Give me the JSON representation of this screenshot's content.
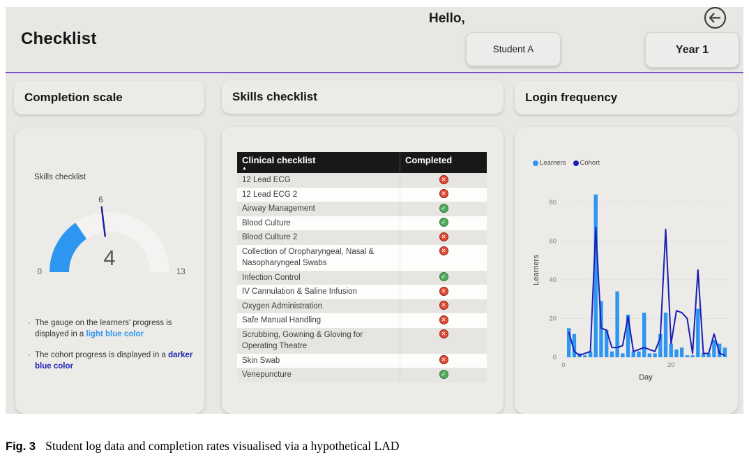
{
  "header": {
    "title": "Checklist",
    "greeting": "Hello,",
    "student_button": "Student A",
    "year_button": "Year 1",
    "back_icon": "arrow-left-circle"
  },
  "colors": {
    "learners_light_blue": "#2E96F0",
    "cohort_dark_blue": "#1B1EB4",
    "accent_purple": "#7a52c7",
    "completed_green": "#54ab5e",
    "not_completed_red": "#df4a35"
  },
  "panels": {
    "completion": {
      "title": "Completion scale",
      "gauge": {
        "label": "Skills checklist",
        "value": 4,
        "min": 0,
        "max": 13,
        "target": 6,
        "value_color": "#2E96F0",
        "track_color": "#f4f3f1",
        "target_color": "#1a1d9c"
      },
      "notes": [
        {
          "text": "The gauge on the learners' progress is displayed in a ",
          "highlight": "light blue color",
          "color": "#2E96F0"
        },
        {
          "text": "The cohort progress is displayed in a ",
          "highlight": "darker blue color",
          "color": "#1B1EB4"
        }
      ]
    },
    "skills": {
      "title": "Skills checklist",
      "table": {
        "columns": [
          "Clinical checklist",
          "Completed"
        ],
        "sort_indicator": "▲",
        "rows": [
          {
            "skill": "12 Lead ECG",
            "completed": false
          },
          {
            "skill": "12 Lead ECG 2",
            "completed": false
          },
          {
            "skill": "Airway Management",
            "completed": true
          },
          {
            "skill": "Blood Culture",
            "completed": true
          },
          {
            "skill": "Blood Culture 2",
            "completed": false
          },
          {
            "skill": "Collection of Oropharyngeal, Nasal & Nasopharyngeal Swabs",
            "completed": false
          },
          {
            "skill": "Infection Control",
            "completed": true
          },
          {
            "skill": "IV Cannulation & Saline Infusion",
            "completed": false
          },
          {
            "skill": "Oxygen Administration",
            "completed": false
          },
          {
            "skill": "Safe Manual Handling",
            "completed": false
          },
          {
            "skill": "Scrubbing, Gowning & Gloving for Operating Theatre",
            "completed": false
          },
          {
            "skill": "Skin Swab",
            "completed": false
          },
          {
            "skill": "Venepuncture",
            "completed": true
          }
        ]
      }
    },
    "login": {
      "title": "Login frequency"
    }
  },
  "chart_data": {
    "type": "bar+line",
    "title": "Login frequency",
    "x": [
      1,
      2,
      3,
      4,
      5,
      6,
      7,
      8,
      9,
      10,
      11,
      12,
      13,
      14,
      15,
      16,
      17,
      18,
      19,
      20,
      21,
      22,
      23,
      24,
      25,
      26,
      27,
      28,
      29,
      30
    ],
    "series": [
      {
        "name": "Learners",
        "type": "bar",
        "color": "#2E96F0",
        "values": [
          15,
          12,
          2,
          1,
          3,
          84,
          29,
          14,
          3,
          34,
          2,
          22,
          3,
          3,
          23,
          2,
          2,
          12,
          23,
          7,
          4,
          5,
          1,
          1,
          25,
          2,
          2,
          9,
          7,
          5
        ]
      },
      {
        "name": "Cohort",
        "type": "line",
        "color": "#1B1EB4",
        "values": [
          13,
          3,
          1,
          2,
          3,
          67,
          15,
          14,
          5,
          5,
          6,
          21,
          3,
          4,
          5,
          4,
          3,
          10,
          66,
          7,
          24,
          23,
          20,
          2,
          45,
          2,
          2,
          12,
          2,
          1
        ]
      }
    ],
    "xlabel": "Day",
    "ylabel": "Learners",
    "ylim": [
      0,
      90
    ],
    "yticks": [
      0,
      20,
      40,
      60,
      80
    ],
    "xticks": [
      0,
      20
    ],
    "grid": "dotted-horizontal",
    "legend_position": "top-left"
  },
  "caption": {
    "label": "Fig. 3",
    "text": "Student log data and completion rates visualised via a hypothetical LAD"
  }
}
